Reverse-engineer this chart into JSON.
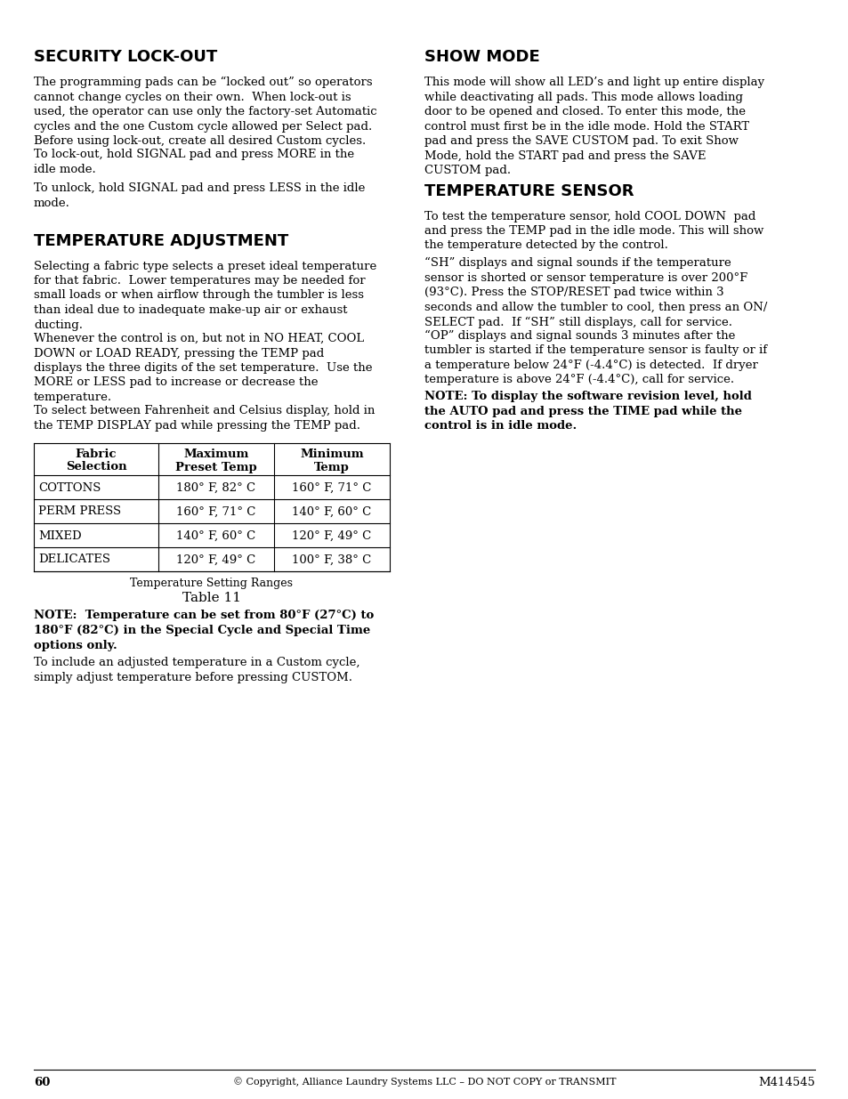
{
  "bg_color": "#ffffff",
  "page_number": "60",
  "copyright": "© Copyright, Alliance Laundry Systems LLC – DO NOT COPY or TRANSMIT",
  "part_number": "M414545",
  "section1_title": "SECURITY LOCK-OUT",
  "section2_title": "TEMPERATURE ADJUSTMENT",
  "section3_title": "SHOW MODE",
  "section4_title": "TEMPERATURE SENSOR",
  "table_caption": "Temperature Setting Ranges",
  "table_label": "Table 11"
}
